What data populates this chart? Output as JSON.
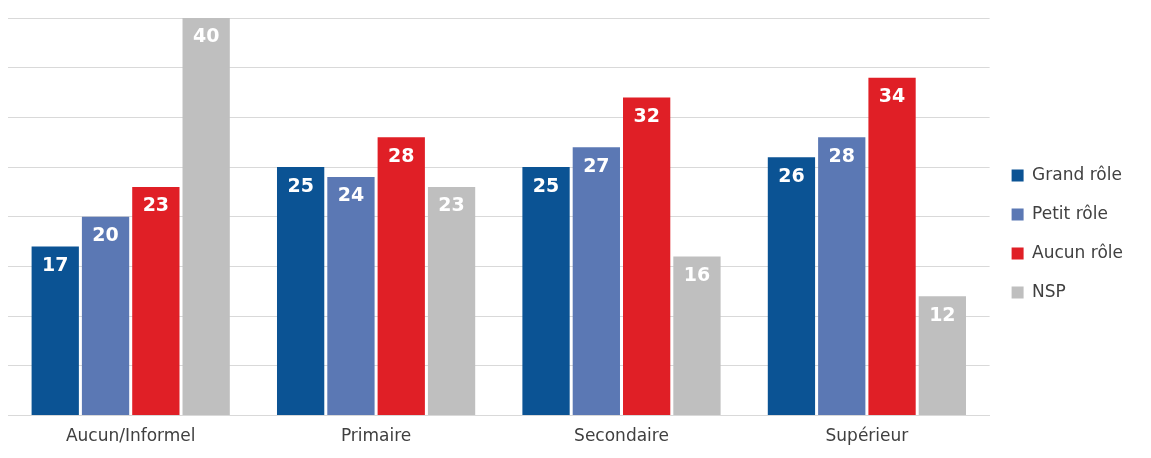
{
  "chart_data": {
    "type": "bar",
    "categories": [
      "Aucun/Informel",
      "Primaire",
      "Secondaire",
      "Supérieur"
    ],
    "series": [
      {
        "name": "Grand rôle",
        "color": "#0b5394",
        "values": [
          17,
          25,
          25,
          26
        ]
      },
      {
        "name": "Petit rôle",
        "color": "#5b78b4",
        "values": [
          20,
          24,
          27,
          28
        ]
      },
      {
        "name": "Aucun rôle",
        "color": "#e01f26",
        "values": [
          23,
          28,
          32,
          34
        ]
      },
      {
        "name": "NSP",
        "color": "#bfbfbf",
        "values": [
          40,
          23,
          16,
          12
        ]
      }
    ],
    "ylim": [
      0,
      40
    ],
    "yticks": [
      {
        "value": 0,
        "label": null
      },
      {
        "value": 5,
        "label": null
      },
      {
        "value": 10,
        "label": null
      },
      {
        "value": 15,
        "label": null
      },
      {
        "value": 20,
        "label": null
      },
      {
        "value": 25,
        "label": null
      },
      {
        "value": 30,
        "label": null
      },
      {
        "value": 35,
        "label": null
      },
      {
        "value": 40,
        "label": null
      }
    ],
    "tick_labels": "x",
    "grid": "y",
    "legend": "right",
    "data_labels": true
  }
}
